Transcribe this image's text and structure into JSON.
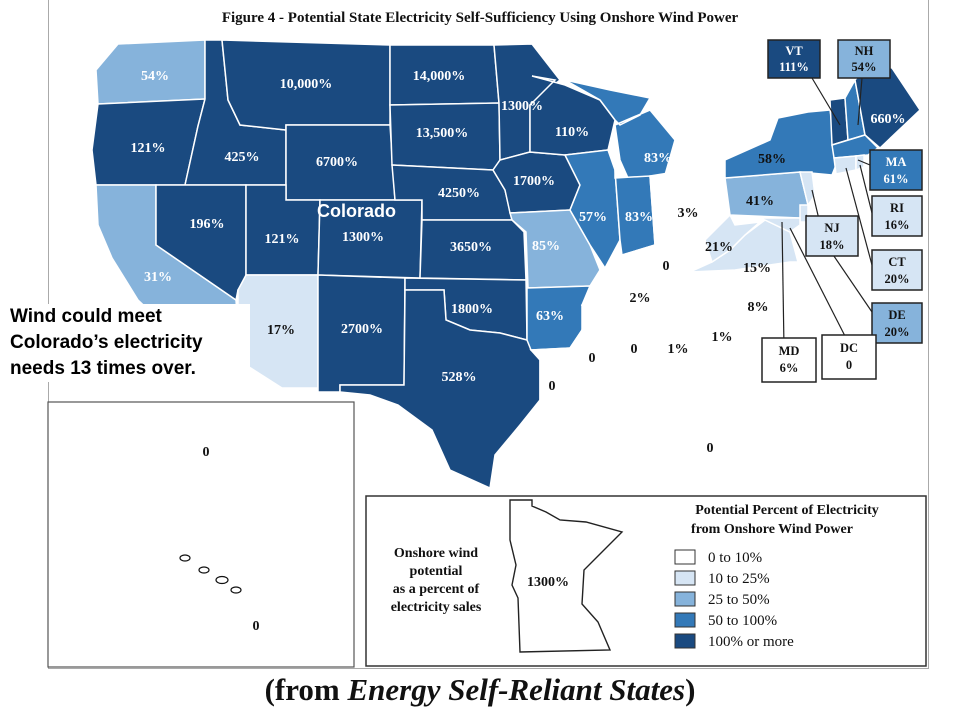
{
  "figure_title": "Figure 4 - Potential State Electricity Self-Sufficiency Using Onshore Wind Power",
  "callouts": {
    "side_note_lines": [
      "Wind could meet",
      "Colorado’s electricity",
      "needs 13 times over."
    ],
    "colorado_label": "Colorado"
  },
  "source": {
    "prefix": "(from ",
    "title": "Energy Self-Reliant States",
    "suffix": ")"
  },
  "colors": {
    "c1": "#ffffff",
    "c2": "#d6e5f4",
    "c3": "#86b3db",
    "c4": "#3379b8",
    "c5": "#1a4a80",
    "state_border": "#ffffff",
    "outline": "#222222"
  },
  "state_values": {
    "WA": "54%",
    "OR": "121%",
    "CA": "31%",
    "ID": "425%",
    "NV": "196%",
    "UT": "121%",
    "AZ": "17%",
    "MT": "10,000%",
    "WY": "6700%",
    "CO": "1300%",
    "NM": "2700%",
    "ND": "14,000%",
    "SD": "13,500%",
    "NE": "4250%",
    "KS": "3650%",
    "OK": "1800%",
    "TX": "528%",
    "MN": "1300%",
    "IA": "1700%",
    "MO": "85%",
    "AR": "63%",
    "LA": "0",
    "WI": "110%",
    "IL": "57%",
    "MI": "83%",
    "IN": "83%",
    "OH": "3%",
    "KY": "0",
    "TN": "2%",
    "MS": "0",
    "AL": "0",
    "GA": "1%",
    "FL": "0",
    "SC": "1%",
    "NC": "8%",
    "VA": "15%",
    "WV": "21%",
    "PA": "41%",
    "NY": "58%",
    "ME": "660%",
    "AK": "0",
    "HI": "0"
  },
  "boxes": {
    "VT": {
      "abbr": "VT",
      "value": "111%"
    },
    "NH": {
      "abbr": "NH",
      "value": "54%"
    },
    "MA": {
      "abbr": "MA",
      "value": "61%"
    },
    "RI": {
      "abbr": "RI",
      "value": "16%"
    },
    "CT": {
      "abbr": "CT",
      "value": "20%"
    },
    "DE": {
      "abbr": "DE",
      "value": "20%"
    },
    "NJ": {
      "abbr": "NJ",
      "value": "18%"
    },
    "MD": {
      "abbr": "MD",
      "value": "6%"
    },
    "DC": {
      "abbr": "DC",
      "value": "0"
    }
  },
  "legend": {
    "title_lines": [
      "Potential Percent of Electricity",
      "from Onshore Wind Power"
    ],
    "inset_caption_lines": [
      "Onshore wind",
      "potential",
      "as a percent of",
      "electricity sales"
    ],
    "inset_value": "1300%",
    "items": [
      {
        "label": "0 to 10%",
        "color": "#ffffff"
      },
      {
        "label": "10 to 25%",
        "color": "#d6e5f4"
      },
      {
        "label": "25 to 50%",
        "color": "#86b3db"
      },
      {
        "label": "50 to 100%",
        "color": "#3379b8"
      },
      {
        "label": "100% or more",
        "color": "#1a4a80"
      }
    ]
  }
}
